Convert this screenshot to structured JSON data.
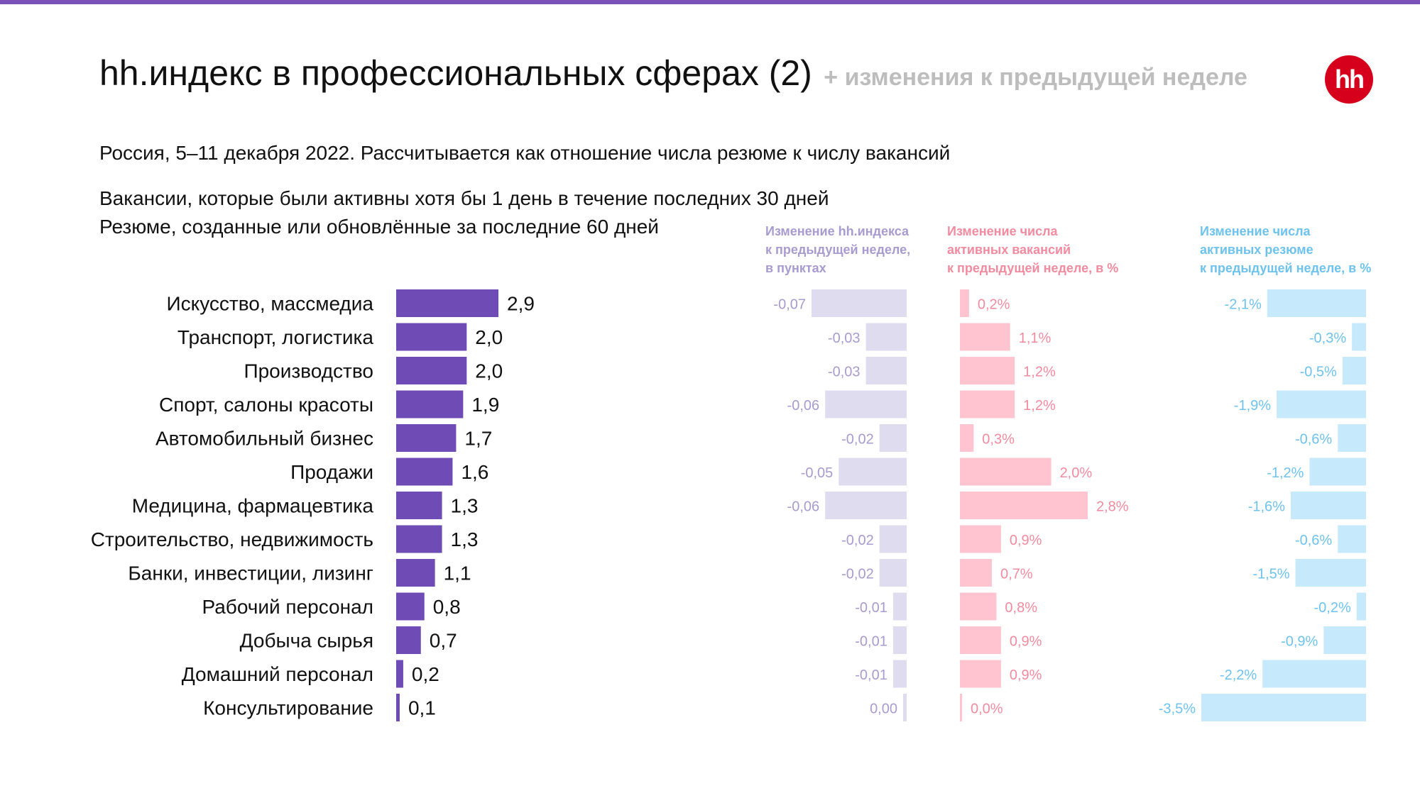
{
  "header": {
    "title": "hh.индекс в профессиональных сферах (2)",
    "title_suffix": "+ изменения к предыдущей неделе",
    "logo_text": "hh"
  },
  "subtitle": "Россия, 5–11 декабря 2022. Рассчитывается как отношение числа резюме к числу вакансий",
  "notes": [
    "Вакансии, которые были активны хотя бы 1 день в течение последних 30 дней",
    "Резюме, созданные или обновлённые за последние 60 дней"
  ],
  "colors": {
    "top_bar": "#7b52b9",
    "logo": "#d6001c",
    "main_bar": "#6f4bb5",
    "index_change_bar": "#e0dcef",
    "index_change_text": "#a89bd0",
    "vacancy_change_bar": "#ffc4cf",
    "vacancy_change_text": "#f28b9f",
    "resume_change_bar": "#c6e9fb",
    "resume_change_text": "#6ec3ee"
  },
  "chart_data": {
    "type": "bar",
    "orientation": "horizontal",
    "categories": [
      "Искусство, массмедиа",
      "Транспорт, логистика",
      "Производство",
      "Спорт, салоны красоты",
      "Автомобильный бизнес",
      "Продажи",
      "Медицина, фармацевтика",
      "Строительство, недвижимость",
      "Банки, инвестиции, лизинг",
      "Рабочий персонал",
      "Добыча сырья",
      "Домашний персонал",
      "Консультирование"
    ],
    "series": [
      {
        "name": "hh.индекс",
        "values": [
          2.9,
          2.0,
          2.0,
          1.9,
          1.7,
          1.6,
          1.3,
          1.3,
          1.1,
          0.8,
          0.7,
          0.2,
          0.1
        ],
        "labels": [
          "2,9",
          "2,0",
          "2,0",
          "1,9",
          "1,7",
          "1,6",
          "1,3",
          "1,3",
          "1,1",
          "0,8",
          "0,7",
          "0,2",
          "0,1"
        ]
      },
      {
        "name": "Изменение hh.индекса к предыдущей неделе, в пунктах",
        "values": [
          -0.07,
          -0.03,
          -0.03,
          -0.06,
          -0.02,
          -0.05,
          -0.06,
          -0.02,
          -0.02,
          -0.01,
          -0.01,
          -0.01,
          0.0
        ],
        "labels": [
          "-0,07",
          "-0,03",
          "-0,03",
          "-0,06",
          "-0,02",
          "-0,05",
          "-0,06",
          "-0,02",
          "-0,02",
          "-0,01",
          "-0,01",
          "-0,01",
          "0,00"
        ]
      },
      {
        "name": "Изменение числа активных вакансий к предыдущей неделе, в %",
        "values": [
          0.2,
          1.1,
          1.2,
          1.2,
          0.3,
          2.0,
          2.8,
          0.9,
          0.7,
          0.8,
          0.9,
          0.9,
          0.0
        ],
        "labels": [
          "0,2%",
          "1,1%",
          "1,2%",
          "1,2%",
          "0,3%",
          "2,0%",
          "2,8%",
          "0,9%",
          "0,7%",
          "0,8%",
          "0,9%",
          "0,9%",
          "0,0%"
        ]
      },
      {
        "name": "Изменение числа активных резюме к предыдущей неделе, в %",
        "values": [
          -2.1,
          -0.3,
          -0.5,
          -1.9,
          -0.6,
          -1.2,
          -1.6,
          -0.6,
          -1.5,
          -0.2,
          -0.9,
          -2.2,
          -3.5
        ],
        "labels": [
          "-2,1%",
          "-0,3%",
          "-0,5%",
          "-1,9%",
          "-0,6%",
          "-1,2%",
          "-1,6%",
          "-0,6%",
          "-1,5%",
          "-0,2%",
          "-0,9%",
          "-2,2%",
          "-3,5%"
        ]
      }
    ],
    "column_headers": [
      [
        "Изменение hh.индекса",
        "к предыдущей неделе,",
        "в пунктах"
      ],
      [
        "Изменение числа",
        "активных вакансий",
        "к предыдущей неделе, в %"
      ],
      [
        "Изменение числа",
        "активных резюме",
        "к предыдущей неделе, в %"
      ]
    ]
  }
}
